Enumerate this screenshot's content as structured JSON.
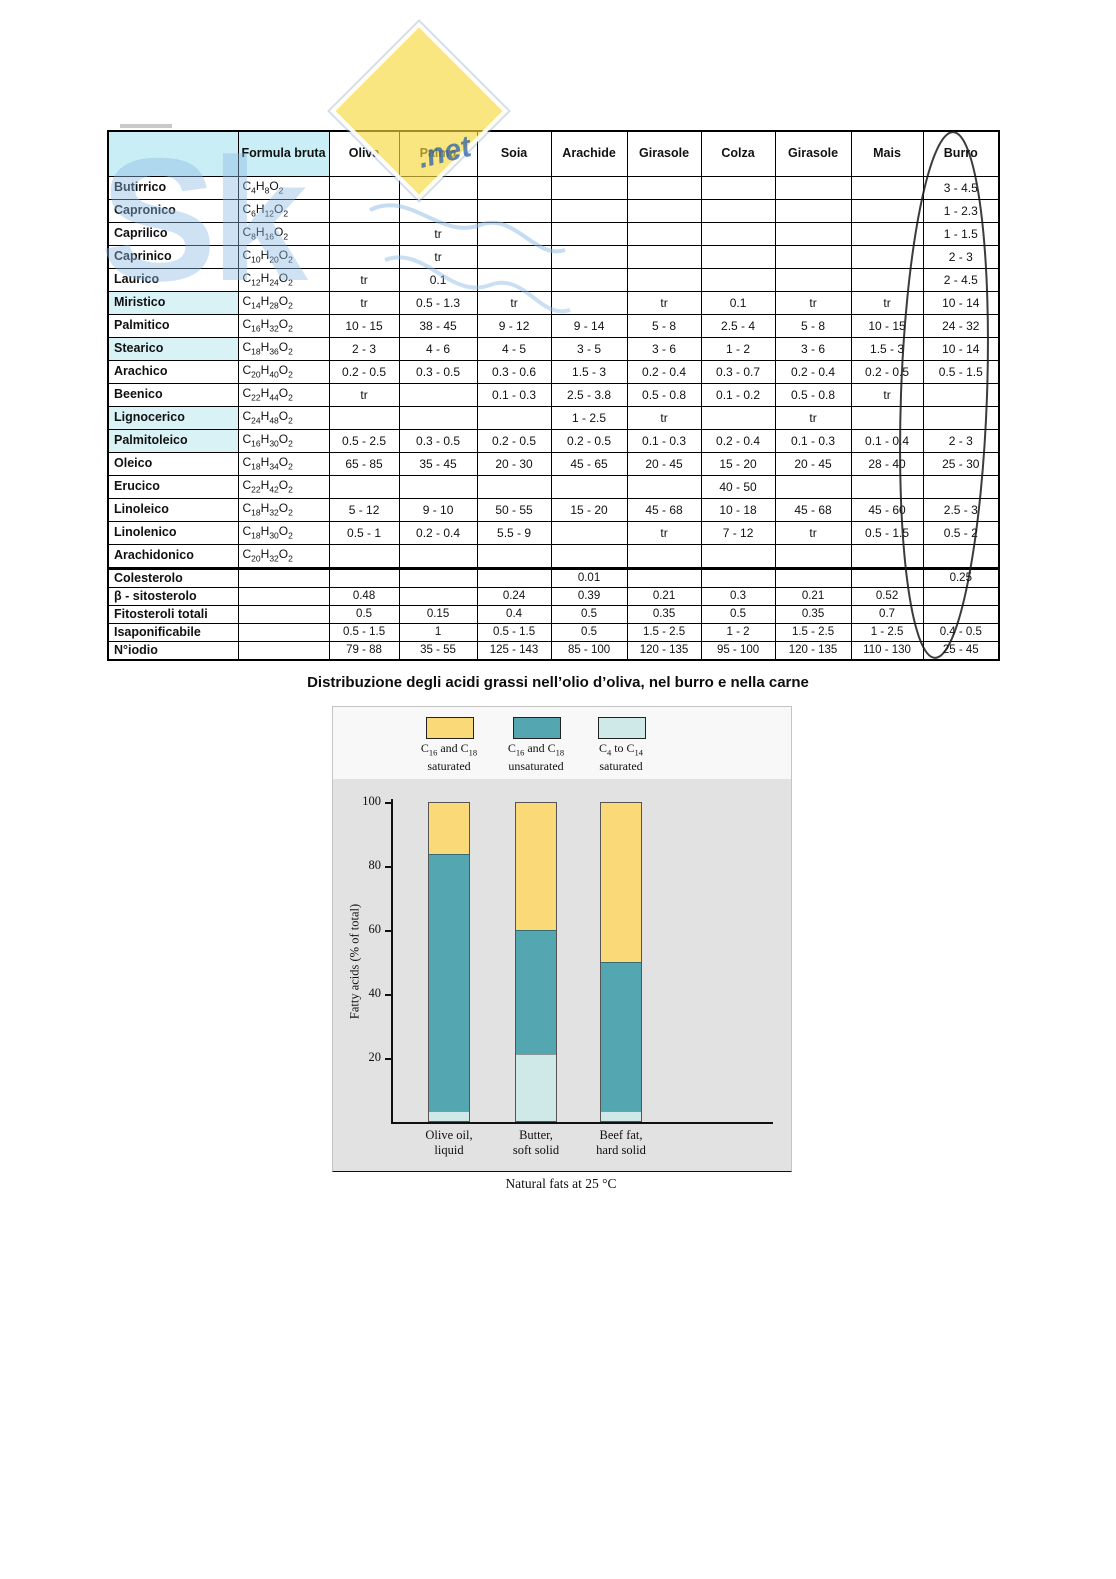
{
  "watermark": {
    "logo_text": "Sk",
    "net_label": ".net"
  },
  "table": {
    "formula_header": "Formula bruta",
    "columns": [
      "Oliva",
      "Palma",
      "Soia",
      "Arachide",
      "Girasole",
      "Colza",
      "Girasole",
      "Mais",
      "Burro"
    ],
    "acid_rows": [
      {
        "name": "Butirrico",
        "formula": "C4H8O2",
        "values": [
          "",
          "",
          "",
          "",
          "",
          "",
          "",
          "",
          "3 - 4.5"
        ]
      },
      {
        "name": "Capronico",
        "formula": "C6H12O2",
        "values": [
          "",
          "",
          "",
          "",
          "",
          "",
          "",
          "",
          "1 - 2.3"
        ]
      },
      {
        "name": "Caprilico",
        "formula": "C8H16O2",
        "values": [
          "",
          "tr",
          "",
          "",
          "",
          "",
          "",
          "",
          "1 - 1.5"
        ]
      },
      {
        "name": "Caprinico",
        "formula": "C10H20O2",
        "values": [
          "",
          "tr",
          "",
          "",
          "",
          "",
          "",
          "",
          "2 - 3"
        ]
      },
      {
        "name": "Laurico",
        "formula": "C12H24O2",
        "values": [
          "tr",
          "0.1",
          "",
          "",
          "",
          "",
          "",
          "",
          "2 - 4.5"
        ]
      },
      {
        "name": "Miristico",
        "formula": "C14H28O2",
        "highlight": true,
        "values": [
          "tr",
          "0.5 - 1.3",
          "tr",
          "",
          "tr",
          "0.1",
          "tr",
          "tr",
          "10  -  14"
        ]
      },
      {
        "name": "Palmitico",
        "formula": "C16H32O2",
        "values": [
          "10 - 15",
          "38 - 45",
          "9 - 12",
          "9 - 14",
          "5 - 8",
          "2.5 - 4",
          "5 - 8",
          "10 - 15",
          "24 - 32"
        ]
      },
      {
        "name": "Stearico",
        "formula": "C18H36O2",
        "highlight": true,
        "values": [
          "2 - 3",
          "4 - 6",
          "4 - 5",
          "3 - 5",
          "3 - 6",
          "1 - 2",
          "3 - 6",
          "1.5 - 3",
          "10 - 14"
        ]
      },
      {
        "name": "Arachico",
        "formula": "C20H40O2",
        "values": [
          "0.2 - 0.5",
          "0.3 - 0.5",
          "0.3 - 0.6",
          "1.5 - 3",
          "0.2 - 0.4",
          "0.3 - 0.7",
          "0.2 - 0.4",
          "0.2 - 0.5",
          "0.5 - 1.5"
        ]
      },
      {
        "name": "Beenico",
        "formula": "C22H44O2",
        "values": [
          "tr",
          "",
          "0.1 - 0.3",
          "2.5 - 3.8",
          "0.5 - 0.8",
          "0.1 - 0.2",
          "0.5 - 0.8",
          "tr",
          ""
        ]
      },
      {
        "name": "Lignocerico",
        "formula": "C24H48O2",
        "highlight": true,
        "values": [
          "",
          "",
          "",
          "1 - 2.5",
          "tr",
          "",
          "tr",
          "",
          ""
        ]
      },
      {
        "name": "Palmitoleico",
        "formula": "C16H30O2",
        "highlight": true,
        "values": [
          "0.5 - 2.5",
          "0.3 - 0.5",
          "0.2 - 0.5",
          "0.2 - 0.5",
          "0.1 - 0.3",
          "0.2 - 0.4",
          "0.1 - 0.3",
          "0.1 - 0.4",
          "2 - 3"
        ]
      },
      {
        "name": "Oleico",
        "formula": "C18H34O2",
        "values": [
          "65 - 85",
          "35 - 45",
          "20 - 30",
          "45 - 65",
          "20 - 45",
          "15 - 20",
          "20 - 45",
          "28 - 40",
          "25 - 30"
        ]
      },
      {
        "name": "Erucico",
        "formula": "C22H42O2",
        "values": [
          "",
          "",
          "",
          "",
          "",
          "40 - 50",
          "",
          "",
          ""
        ]
      },
      {
        "name": "Linoleico",
        "formula": "C18H32O2",
        "values": [
          "5 - 12",
          "9 - 10",
          "50 - 55",
          "15 - 20",
          "45 - 68",
          "10 - 18",
          "45 - 68",
          "45 - 60",
          "2.5 - 3"
        ]
      },
      {
        "name": "Linolenico",
        "formula": "C18H30O2",
        "values": [
          "0.5 - 1",
          "0.2 - 0.4",
          "5.5 - 9",
          "",
          "tr",
          "7 - 12",
          "tr",
          "0.5 - 1.5",
          "0.5 - 2"
        ]
      },
      {
        "name": "Arachidonico",
        "formula": "C20H32O2",
        "values": [
          "",
          "",
          "",
          "",
          "",
          "",
          "",
          "",
          ""
        ]
      }
    ],
    "summary_rows": [
      {
        "name": "Colesterolo",
        "values": [
          "",
          "",
          "",
          "0.01",
          "",
          "",
          "",
          "",
          "0.25"
        ]
      },
      {
        "name": "β - sitosterolo",
        "values": [
          "0.48",
          "",
          "0.24",
          "0.39",
          "0.21",
          "0.3",
          "0.21",
          "0.52",
          ""
        ]
      },
      {
        "name": "Fitosteroli totali",
        "values": [
          "0.5",
          "0.15",
          "0.4",
          "0.5",
          "0.35",
          "0.5",
          "0.35",
          "0.7",
          ""
        ]
      },
      {
        "name": "Isaponificabile",
        "values": [
          "0.5 - 1.5",
          "1",
          "0.5 - 1.5",
          "0.5",
          "1.5 - 2.5",
          "1 - 2",
          "1.5 - 2.5",
          "1 - 2.5",
          "0.4 - 0.5"
        ]
      },
      {
        "name": "N°iodio",
        "values": [
          "79 - 88",
          "35 - 55",
          "125 - 143",
          "85 - 100",
          "120 - 135",
          "95 - 100",
          "120 - 135",
          "110 - 130",
          "25 - 45"
        ]
      }
    ]
  },
  "caption": "Distribuzione degli acidi grassi nell’olio d’oliva, nel burro e nella carne",
  "chart_data": {
    "type": "bar",
    "stacked": true,
    "title": "Natural fats at 25 °C",
    "ylabel": "Fatty acids (% of total)",
    "ylim": [
      0,
      100
    ],
    "yticks": [
      20,
      40,
      60,
      80,
      100
    ],
    "grid": false,
    "legend_position": "top",
    "categories": [
      [
        "Olive oil,",
        "liquid"
      ],
      [
        "Butter,",
        "soft solid"
      ],
      [
        "Beef fat,",
        "hard solid"
      ]
    ],
    "series": [
      {
        "name": "C4 to C14 saturated",
        "color": "#cfe8e8",
        "values": [
          3,
          21,
          3
        ]
      },
      {
        "name": "C16 and C18 unsaturated",
        "color": "#54a7b0",
        "values": [
          81,
          39,
          47
        ]
      },
      {
        "name": "C16 and C18 saturated",
        "color": "#f9d978",
        "values": [
          16,
          40,
          50
        ]
      }
    ],
    "legend": [
      {
        "lines": [
          "C16 and C18",
          "saturated"
        ],
        "color": "#f9d978"
      },
      {
        "lines": [
          "C16 and C18",
          "unsaturated"
        ],
        "color": "#54a7b0"
      },
      {
        "lines": [
          "C4 to C14",
          "saturated"
        ],
        "color": "#cfe8e8"
      }
    ]
  }
}
